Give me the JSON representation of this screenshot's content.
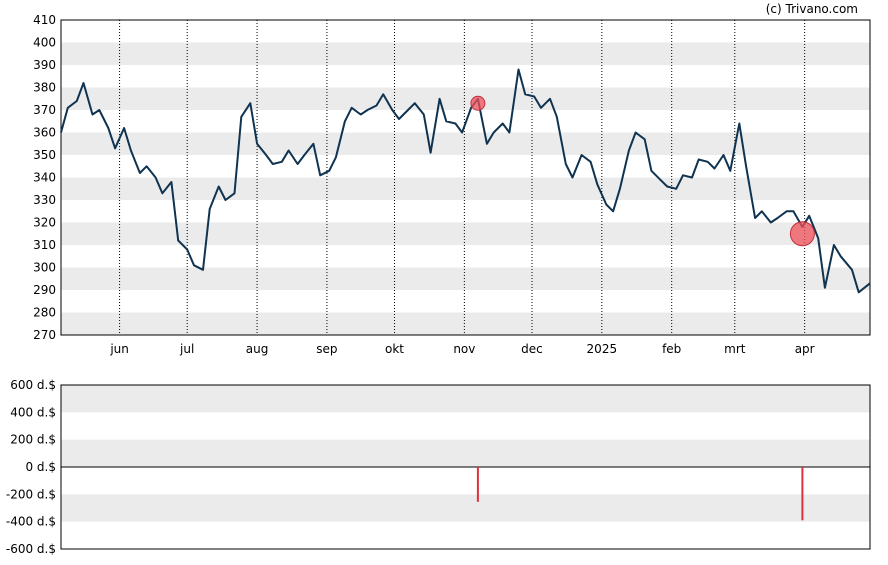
{
  "credit": "(c) Trivano.com",
  "colors": {
    "price_line": "#0f3350",
    "band": "#ebebeb",
    "marker": "#f0505a",
    "volume_bar": "#e0303c",
    "axis": "#000000",
    "vgrid": "#000000"
  },
  "chart_data": [
    {
      "type": "line",
      "title": "",
      "ylim": [
        270,
        410
      ],
      "yticks": [
        270,
        280,
        290,
        300,
        310,
        320,
        330,
        340,
        350,
        360,
        370,
        380,
        390,
        400,
        410
      ],
      "ytick_labels": [
        "270",
        "280",
        "290",
        "300",
        "310",
        "320",
        "330",
        "340",
        "350",
        "360",
        "370",
        "380",
        "390",
        "400",
        "410"
      ],
      "xlim": [
        "2024-05-06",
        "2025-04-30"
      ],
      "xticks": [
        "2024-06-01",
        "2024-07-01",
        "2024-08-01",
        "2024-09-01",
        "2024-10-01",
        "2024-11-01",
        "2024-12-01",
        "2025-01-01",
        "2025-02-01",
        "2025-03-01",
        "2025-04-01"
      ],
      "xtick_labels": [
        "jun",
        "jul",
        "aug",
        "sep",
        "okt",
        "nov",
        "dec",
        "2025",
        "feb",
        "mrt",
        "apr"
      ],
      "grid": "alternating horizontal bands, dotted vertical lines at month starts",
      "series": [
        {
          "x": [
            "2024-05-06",
            "2024-05-09",
            "2024-05-13",
            "2024-05-16",
            "2024-05-20",
            "2024-05-23",
            "2024-05-27",
            "2024-05-30",
            "2024-06-03",
            "2024-06-06",
            "2024-06-10",
            "2024-06-13",
            "2024-06-17",
            "2024-06-20",
            "2024-06-24",
            "2024-06-27",
            "2024-07-01",
            "2024-07-04",
            "2024-07-08",
            "2024-07-11",
            "2024-07-15",
            "2024-07-18",
            "2024-07-22",
            "2024-07-25",
            "2024-07-29",
            "2024-08-01",
            "2024-08-05",
            "2024-08-08",
            "2024-08-12",
            "2024-08-15",
            "2024-08-19",
            "2024-08-22",
            "2024-08-26",
            "2024-08-29",
            "2024-09-02",
            "2024-09-05",
            "2024-09-09",
            "2024-09-12",
            "2024-09-16",
            "2024-09-19",
            "2024-09-23",
            "2024-09-26",
            "2024-09-30",
            "2024-10-03",
            "2024-10-07",
            "2024-10-10",
            "2024-10-14",
            "2024-10-17",
            "2024-10-21",
            "2024-10-24",
            "2024-10-28",
            "2024-10-31",
            "2024-11-04",
            "2024-11-07",
            "2024-11-11",
            "2024-11-14",
            "2024-11-18",
            "2024-11-21",
            "2024-11-25",
            "2024-11-28",
            "2024-12-02",
            "2024-12-05",
            "2024-12-09",
            "2024-12-12",
            "2024-12-16",
            "2024-12-19",
            "2024-12-23",
            "2024-12-27",
            "2024-12-30",
            "2025-01-03",
            "2025-01-06",
            "2025-01-09",
            "2025-01-13",
            "2025-01-16",
            "2025-01-20",
            "2025-01-23",
            "2025-01-27",
            "2025-01-30",
            "2025-02-03",
            "2025-02-06",
            "2025-02-10",
            "2025-02-13",
            "2025-02-17",
            "2025-02-20",
            "2025-02-24",
            "2025-02-27",
            "2025-03-03",
            "2025-03-06",
            "2025-03-10",
            "2025-03-13",
            "2025-03-17",
            "2025-03-20",
            "2025-03-24",
            "2025-03-27",
            "2025-03-31",
            "2025-04-03",
            "2025-04-07",
            "2025-04-10",
            "2025-04-14",
            "2025-04-17",
            "2025-04-22",
            "2025-04-25",
            "2025-04-30"
          ],
          "y": [
            360,
            371,
            374,
            382,
            368,
            370,
            362,
            353,
            362,
            352,
            342,
            345,
            340,
            333,
            338,
            312,
            308,
            301,
            299,
            326,
            336,
            330,
            333,
            367,
            373,
            355,
            350,
            346,
            347,
            352,
            346,
            350,
            355,
            341,
            343,
            349,
            365,
            371,
            368,
            370,
            372,
            377,
            370,
            366,
            370,
            373,
            368,
            351,
            375,
            365,
            364,
            360,
            371,
            375,
            355,
            360,
            364,
            360,
            388,
            377,
            376,
            371,
            375,
            367,
            346,
            340,
            350,
            347,
            337,
            328,
            325,
            335,
            352,
            360,
            357,
            343,
            339,
            336,
            335,
            341,
            340,
            348,
            347,
            344,
            350,
            343,
            364,
            345,
            322,
            325,
            320,
            322,
            325,
            325,
            318,
            323,
            313,
            291,
            310,
            305,
            299,
            289,
            293
          ]
        }
      ],
      "markers": [
        {
          "x": "2024-11-07",
          "y": 373,
          "size": "small"
        },
        {
          "x": "2025-03-31",
          "y": 315,
          "size": "large"
        }
      ]
    },
    {
      "type": "bar",
      "title": "",
      "ylim": [
        -600,
        600
      ],
      "yticks": [
        -600,
        -400,
        -200,
        0,
        200,
        400,
        600
      ],
      "ytick_labels": [
        "-600 d.$",
        "-400 d.$",
        "-200 d.$",
        "0 d.$",
        "200 d.$",
        "400 d.$",
        "600 d.$"
      ],
      "grid": "alternating horizontal bands",
      "bars": [
        {
          "x": "2024-11-07",
          "value": -255
        },
        {
          "x": "2025-03-31",
          "value": -390
        }
      ]
    }
  ]
}
